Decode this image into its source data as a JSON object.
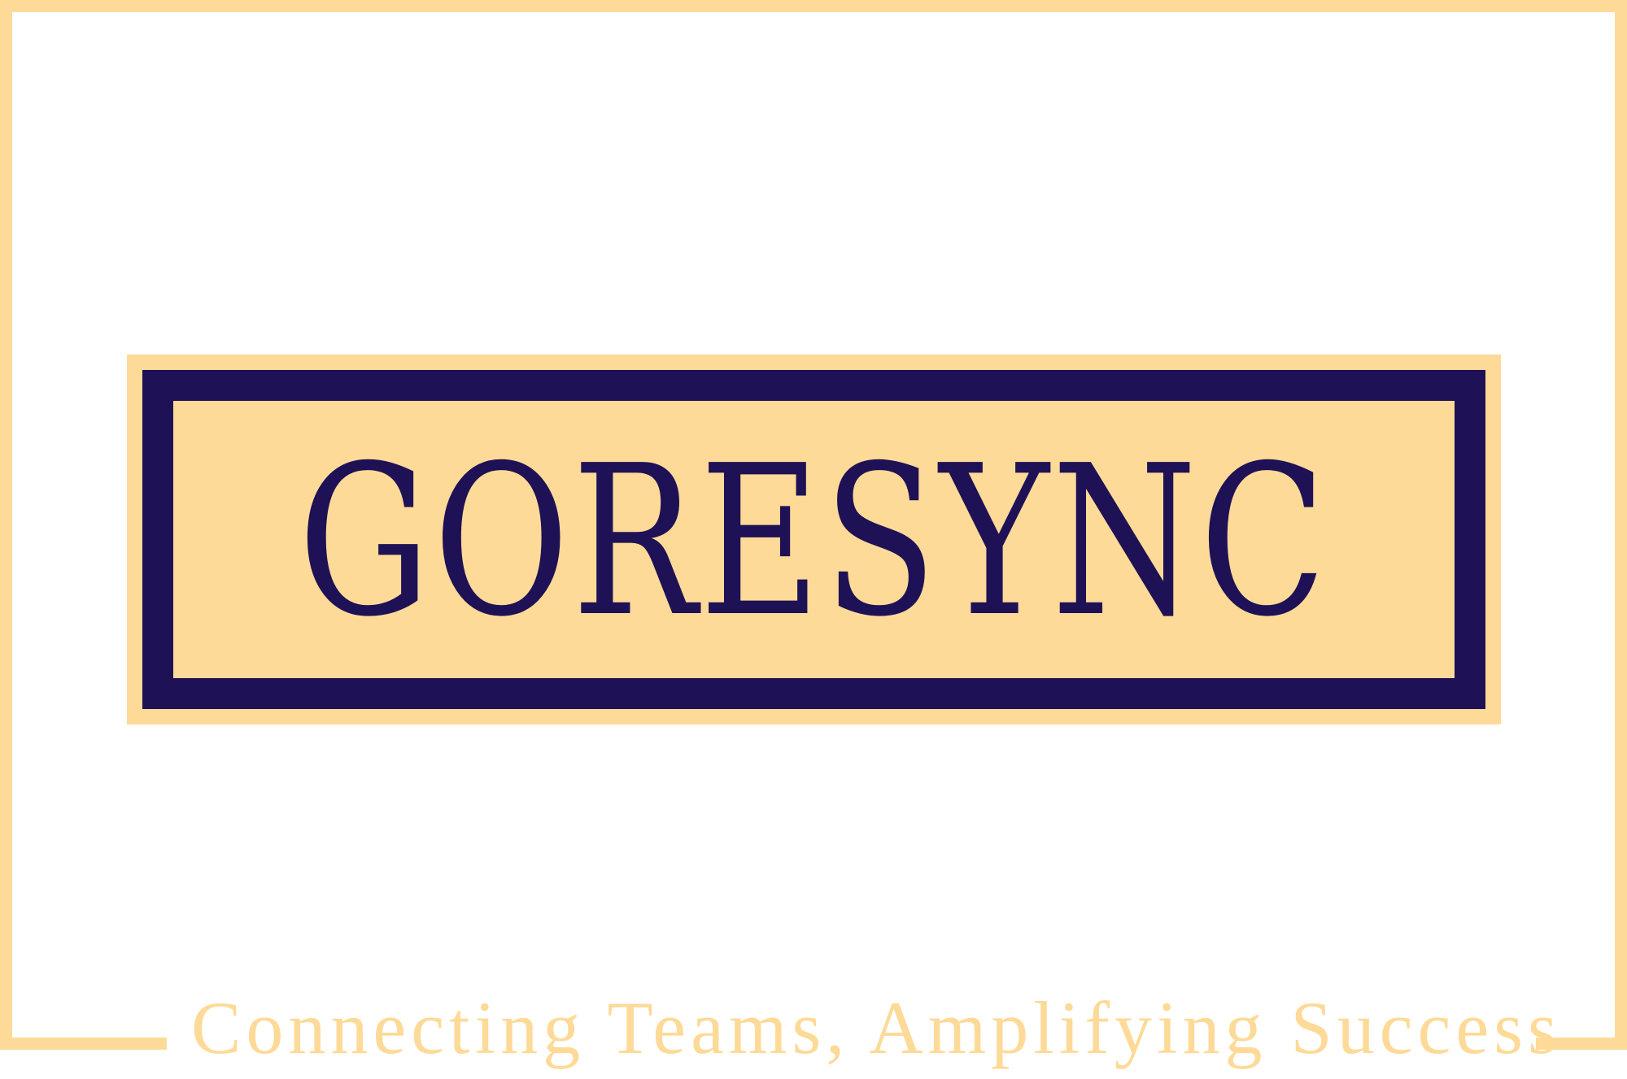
{
  "logo": {
    "brand_name": "GORESYNC",
    "tagline": "Connecting Teams, Amplifying Success"
  },
  "colors": {
    "navy": "#1F1155",
    "gold": "#FEDA98",
    "background": "#FFFFFF"
  }
}
